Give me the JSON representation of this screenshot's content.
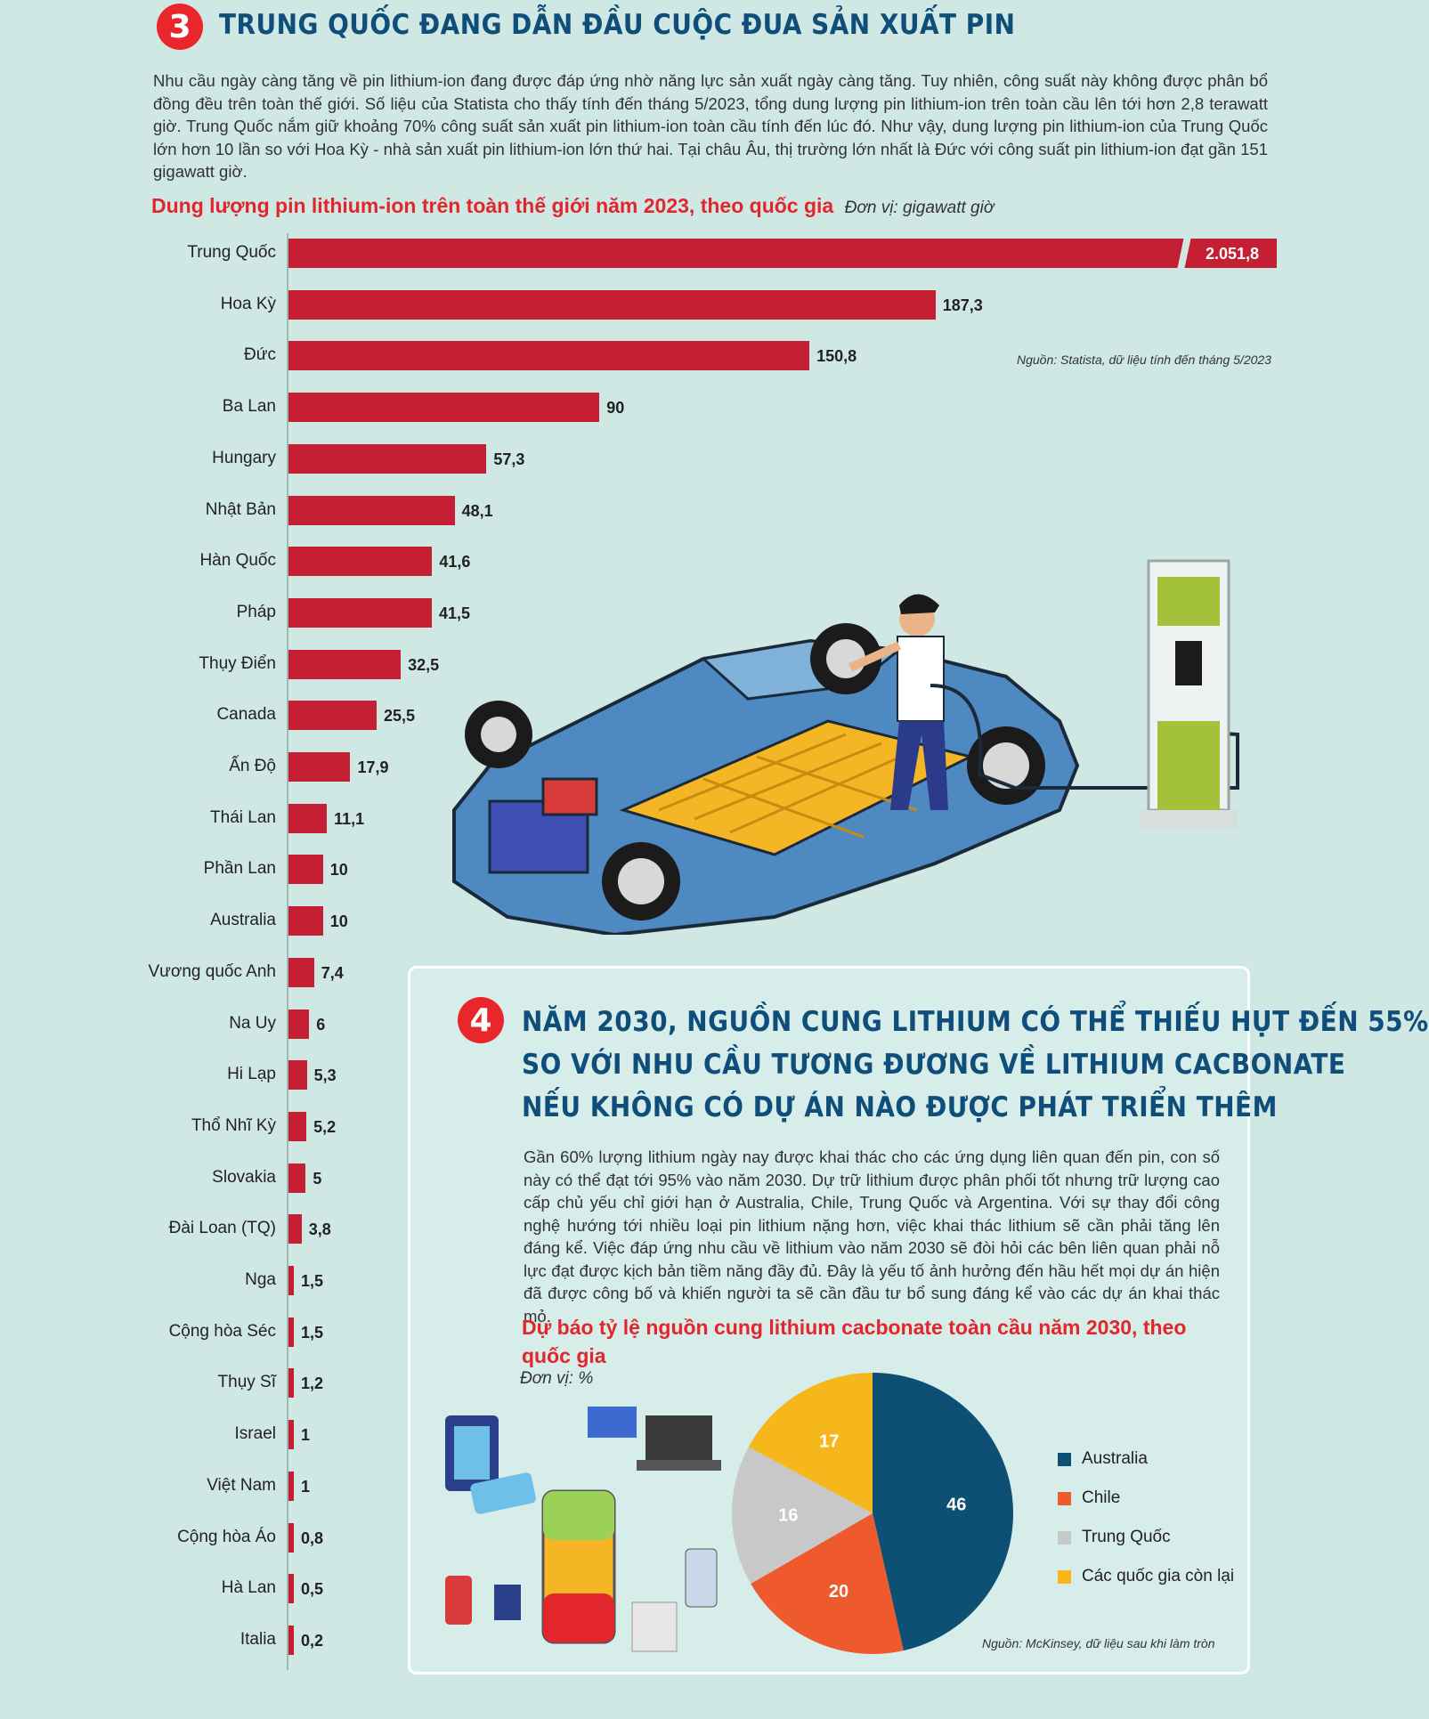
{
  "section3": {
    "number": "3",
    "title": "TRUNG QUỐC ĐANG DẪN ĐẦU CUỘC ĐUA SẢN XUẤT PIN",
    "paragraph": "Nhu cầu ngày càng tăng về pin lithium-ion đang được đáp ứng nhờ năng lực sản xuất ngày càng tăng. Tuy nhiên, công suất này không được phân bổ đồng đều trên toàn thế giới. Số liệu của Statista cho thấy tính đến tháng 5/2023, tổng dung lượng pin lithium-ion trên toàn cầu lên tới hơn 2,8 terawatt giờ. Trung Quốc nắm giữ khoảng 70% công suất sản xuất pin lithium-ion toàn cầu tính đến lúc đó. Như vậy, dung lượng pin lithium-ion của Trung Quốc lớn hơn 10 lần so với Hoa Kỳ - nhà sản xuất pin lithium-ion lớn thứ hai. Tại châu Âu, thị trường lớn nhất là Đức với công suất pin lithium-ion đạt gần 151 gigawatt giờ.",
    "source": "Nguồn: Statista, dữ liệu tính đến tháng 5/2023"
  },
  "section4": {
    "number": "4",
    "title_lines": [
      "NĂM 2030, NGUỒN CUNG LITHIUM CÓ THỂ THIẾU HỤT ĐẾN 55%",
      "SO VỚI NHU CẦU TƯƠNG ĐƯƠNG VỀ LITHIUM CACBONATE",
      "NẾU KHÔNG CÓ DỰ ÁN NÀO ĐƯỢC PHÁT TRIỂN THÊM"
    ],
    "paragraph": "Gần 60% lượng lithium ngày nay được khai thác cho các ứng dụng liên quan đến pin, con số này có thể đạt tới 95% vào năm 2030. Dự trữ lithium được phân phối tốt nhưng trữ lượng cao cấp chủ yếu chỉ giới hạn ở Australia, Chile, Trung Quốc và Argentina. Với sự thay đổi công nghệ hướng tới nhiều loại pin lithium nặng hơn, việc khai thác lithium sẽ cần phải tăng lên đáng kể. Việc đáp ứng nhu cầu về lithium vào năm 2030 sẽ đòi hỏi các bên liên quan phải nỗ lực đạt được kịch bản tiềm năng đầy đủ. Đây là yếu tố ảnh hưởng đến hầu hết mọi dự án hiện đã được công bố và khiến người ta sẽ cần đầu tư bổ sung đáng kể vào các dự án khai thác mỏ.",
    "source": "Nguồn: McKinsey, dữ liệu sau khi làm tròn"
  },
  "colors": {
    "accent_red": "#e2262b",
    "bar_red": "#c41f33",
    "title_blue": "#0f4d7a",
    "background": "#cfe8e4"
  },
  "chart_data": [
    {
      "type": "bar",
      "orientation": "horizontal",
      "title": "Dung lượng pin lithium-ion trên toàn thế giới năm 2023, theo quốc gia",
      "unit": "Đơn vị: gigawatt giờ",
      "axis_break_on_first_bar": true,
      "categories": [
        "Trung Quốc",
        "Hoa Kỳ",
        "Đức",
        "Ba Lan",
        "Hungary",
        "Nhật Bản",
        "Hàn Quốc",
        "Pháp",
        "Thụy Điển",
        "Canada",
        "Ấn Độ",
        "Thái Lan",
        "Phần Lan",
        "Australia",
        "Vương quốc Anh",
        "Na Uy",
        "Hi Lạp",
        "Thổ Nhĩ Kỳ",
        "Slovakia",
        "Đài Loan (TQ)",
        "Nga",
        "Cộng hòa Séc",
        "Thụy Sĩ",
        "Israel",
        "Việt Nam",
        "Cộng hòa Áo",
        "Hà Lan",
        "Italia"
      ],
      "values": [
        2051.8,
        187.3,
        150.8,
        90,
        57.3,
        48.1,
        41.6,
        41.5,
        32.5,
        25.5,
        17.9,
        11.1,
        10,
        10,
        7.4,
        6,
        5.3,
        5.2,
        5,
        3.8,
        1.5,
        1.5,
        1.2,
        1,
        1,
        0.8,
        0.5,
        0.2
      ],
      "value_labels": [
        "2.051,8",
        "187,3",
        "150,8",
        "90",
        "57,3",
        "48,1",
        "41,6",
        "41,5",
        "32,5",
        "25,5",
        "17,9",
        "11,1",
        "10",
        "10",
        "7,4",
        "6",
        "5,3",
        "5,2",
        "5",
        "3,8",
        "1,5",
        "1,5",
        "1,2",
        "1",
        "1",
        "0,8",
        "0,5",
        "0,2"
      ]
    },
    {
      "type": "pie",
      "title": "Dự báo tỷ lệ nguồn cung lithium cacbonate toàn cầu năm 2030, theo quốc gia",
      "unit": "Đơn vị: %",
      "slices": [
        {
          "label": "Australia",
          "value": 46,
          "color": "#0e4f74"
        },
        {
          "label": "Chile",
          "value": 20,
          "color": "#ee5a2e"
        },
        {
          "label": "Trung Quốc",
          "value": 16,
          "color": "#c8c8c8"
        },
        {
          "label": "Các quốc gia còn lại",
          "value": 17,
          "color": "#f6b71c"
        }
      ]
    }
  ]
}
